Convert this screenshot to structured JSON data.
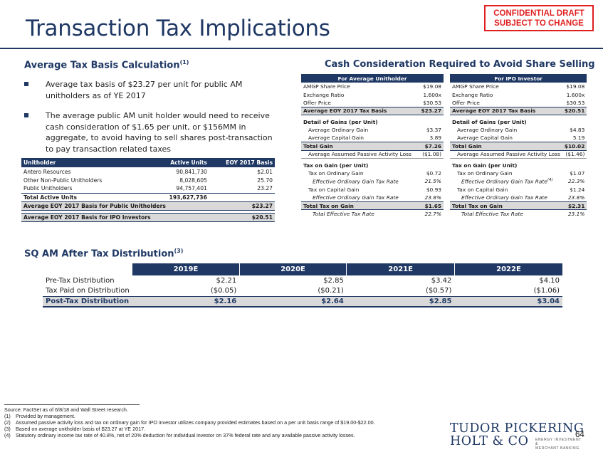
{
  "stamp": {
    "line1": "CONFIDENTIAL DRAFT",
    "line2": "SUBJECT TO CHANGE"
  },
  "title": "Transaction Tax Implications",
  "left_section": {
    "heading": "Average Tax Basis Calculation",
    "heading_note": "(1)",
    "bullets": [
      "Average tax basis of $23.27 per unit for public AM unitholders as of YE 2017",
      "The average public AM unit holder would need to receive cash consideration of $1.65 per unit, or $156MM in aggregate, to avoid having to sell shares post-transaction to pay transaction related taxes"
    ],
    "table": {
      "headers": [
        "Unitholder",
        "Active Units",
        "EOY 2017 Basis"
      ],
      "rows": [
        [
          "Antero Resources",
          "90,841,730",
          "$2.01"
        ],
        [
          "Other Non-Public Unitholders",
          "8,028,605",
          "25.70"
        ],
        [
          "Public Unitholders",
          "94,757,401",
          "23.27"
        ]
      ],
      "total": [
        "Total Active Units",
        "193,627,736",
        ""
      ],
      "highlight1": [
        "Average EOY 2017 Basis for Public Unitholders",
        "$23.27"
      ],
      "highlight2": [
        "Average EOY 2017 Basis for IPO Investors",
        "$20.51"
      ]
    }
  },
  "right_section": {
    "heading": "Cash Consideration Required to Avoid Share Selling",
    "tables": [
      {
        "header": "For Average Unitholder",
        "rows": [
          [
            "AMGP Share Price",
            "$19.08"
          ],
          [
            "Exchange Ratio",
            "1.600x"
          ],
          [
            "Offer Price",
            "$30.53"
          ]
        ],
        "basis": [
          "Average EOY 2017 Tax Basis",
          "$23.27"
        ],
        "gains_head": "Detail of Gains (per Unit)",
        "gains": [
          [
            "Average Ordinary Gain",
            "$3.37"
          ],
          [
            "Average Capital Gain",
            "3.89"
          ]
        ],
        "total_gain": [
          "Total Gain",
          "$7.26"
        ],
        "passive": [
          "Average Assumed Passive Activity Loss",
          "($1.08)"
        ],
        "tax_head": "Tax on Gain (per Unit)",
        "tax_ord": [
          "Tax on Ordinary Gain",
          "$0.72"
        ],
        "tax_ord_rate": [
          "Effective Ordinary Gain Tax Rate",
          "21.5%"
        ],
        "tax_ord_note": "",
        "tax_cap": [
          "Tax on Capital Gain",
          "$0.93"
        ],
        "tax_cap_rate": [
          "Effective Ordinary Gain Tax Rate",
          "23.8%"
        ],
        "total_tax": [
          "Total Tax on Gain",
          "$1.65"
        ],
        "eff_rate": [
          "Total Effective Tax Rate",
          "22.7%"
        ]
      },
      {
        "header": "For IPO Investor",
        "rows": [
          [
            "AMGP Share Price",
            "$19.08"
          ],
          [
            "Exchange Ratio",
            "1.600x"
          ],
          [
            "Offer Price",
            "$30.53"
          ]
        ],
        "basis": [
          "Average EOY 2017 Tax Basis",
          "$20.51"
        ],
        "gains_head": "Detail of Gains (per Unit)",
        "gains": [
          [
            "Average Ordinary Gain",
            "$4.83"
          ],
          [
            "Average Capital Gain",
            "5.19"
          ]
        ],
        "total_gain": [
          "Total Gain",
          "$10.02"
        ],
        "passive": [
          "Average Assumed Passive Activity Loss",
          "($1.46)"
        ],
        "tax_head": "Tax on Gain (per Unit)",
        "tax_ord": [
          "Tax on Ordinary Gain",
          "$1.07"
        ],
        "tax_ord_rate": [
          "Effective Ordinary Gain Tax Rate",
          "22.3%"
        ],
        "tax_ord_note": "(4)",
        "tax_cap": [
          "Tax on Capital Gain",
          "$1.24"
        ],
        "tax_cap_rate": [
          "Effective Ordinary Gain Tax Rate",
          "23.8%"
        ],
        "total_tax": [
          "Total Tax on Gain",
          "$2.31"
        ],
        "eff_rate": [
          "Total Effective Tax Rate",
          "23.1%"
        ]
      }
    ]
  },
  "sq_section": {
    "heading": "SQ AM After Tax Distribution",
    "heading_note": "(3)",
    "years": [
      "2019E",
      "2020E",
      "2021E",
      "2022E"
    ],
    "rows": [
      {
        "label": "Pre-Tax Distribution",
        "values": [
          "$2.21",
          "$2.85",
          "$3.42",
          "$4.10"
        ]
      },
      {
        "label": "Tax Paid on Distribution",
        "values": [
          "($0.05)",
          "($0.21)",
          "($0.57)",
          "($1.06)"
        ]
      }
    ],
    "total": {
      "label": "Post-Tax Distribution",
      "values": [
        "$2.16",
        "$2.64",
        "$2.85",
        "$3.04"
      ]
    }
  },
  "footnotes": {
    "source": "Source: FactSet as of 6/8/18 and Wall Street research.",
    "notes": [
      {
        "key": "(1)",
        "text": "Provided by management."
      },
      {
        "key": "(2)",
        "text": "Assumed passive activity loss and tax on ordinary gain for IPO investor utilizes company provided estimates based on a per unit basis range of $19.00-$22.00."
      },
      {
        "key": "(3)",
        "text": "Based on average unitholder basis of $23.27 at YE 2017."
      },
      {
        "key": "(4)",
        "text": "Statutory ordinary income tax rate of 40.8%, net of 20% deduction for individual investor on 37% federal rate and any available passive activity losses."
      }
    ]
  },
  "logo": {
    "line1": "TUDOR PICKERING",
    "line2": "HOLT & CO",
    "sub1": "ENERGY INVESTMENT &",
    "sub2": "MERCHANT BANKING"
  },
  "page_number": "64",
  "colors": {
    "navy": "#1f3864",
    "stamp_red": "#e01f1f",
    "highlight_gray": "#d9d9d9"
  }
}
